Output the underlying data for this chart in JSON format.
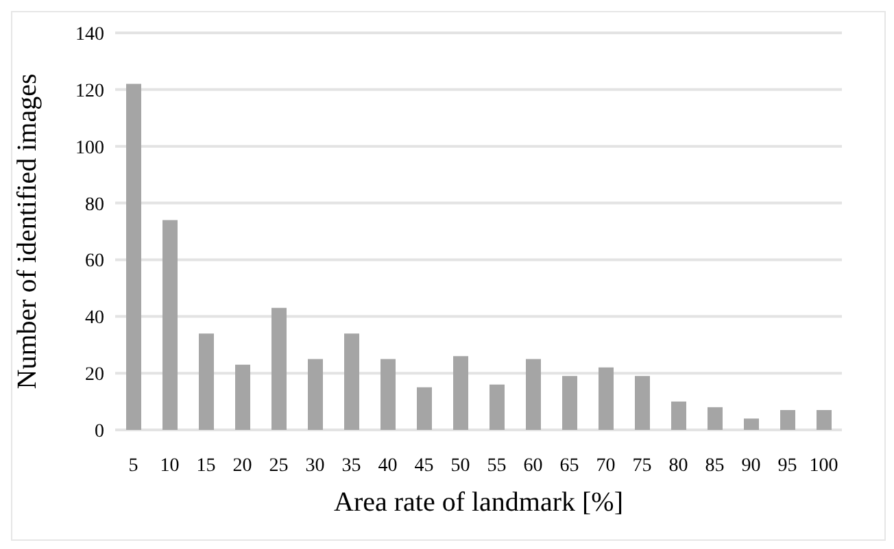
{
  "chart_data": {
    "type": "bar",
    "xlabel": "Area rate of landmark [%]",
    "ylabel": "Number of identified images",
    "categories": [
      "5",
      "10",
      "15",
      "20",
      "25",
      "30",
      "35",
      "40",
      "45",
      "50",
      "55",
      "60",
      "65",
      "70",
      "75",
      "80",
      "85",
      "90",
      "95",
      "100"
    ],
    "values": [
      122,
      74,
      34,
      23,
      43,
      25,
      34,
      25,
      15,
      26,
      16,
      25,
      19,
      22,
      19,
      10,
      8,
      4,
      7,
      7
    ],
    "color": "#a5a5a5",
    "ylim": [
      0,
      140
    ],
    "yticks": [
      0,
      20,
      40,
      60,
      80,
      100,
      120,
      140
    ],
    "grid": "y"
  }
}
